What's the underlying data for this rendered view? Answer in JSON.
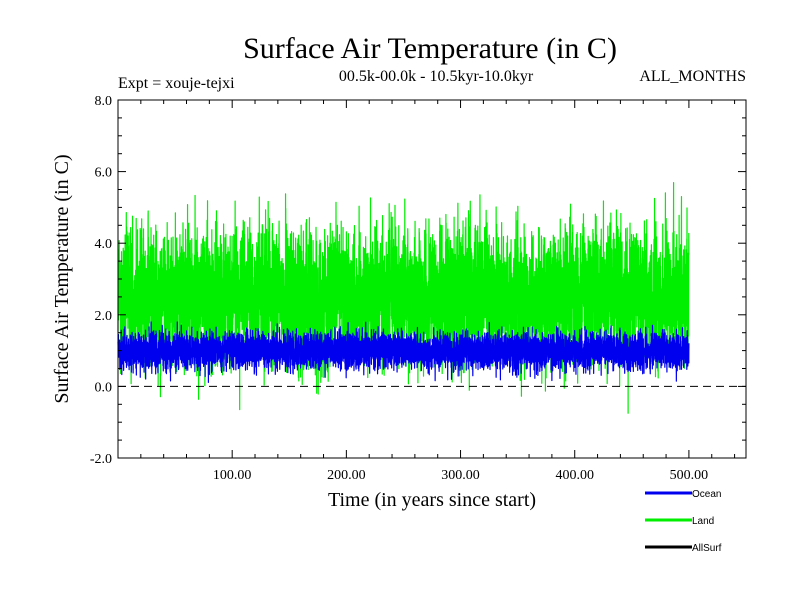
{
  "chart_data": {
    "type": "line",
    "title": "Surface Air Temperature (in C)",
    "subtitle": "00.5k-00.0k - 10.5kyr-10.0kyr",
    "expt_label": "Expt = xouje-tejxi",
    "months_label": "ALL_MONTHS",
    "xlabel": "Time (in years since start)",
    "ylabel": "Surface Air Temperature (in C)",
    "xlim": [
      0,
      550
    ],
    "ylim": [
      -2.0,
      8.0
    ],
    "x_ticks": [
      100,
      200,
      300,
      400,
      500
    ],
    "x_tick_labels": [
      "100.00",
      "200.00",
      "300.00",
      "400.00",
      "500.00"
    ],
    "y_ticks": [
      -2.0,
      0.0,
      2.0,
      4.0,
      6.0,
      8.0
    ],
    "y_tick_labels": [
      "-2.0",
      "0.0",
      "2.0",
      "4.0",
      "6.0",
      "8.0"
    ],
    "reference_line": {
      "y": 0.0,
      "style": "dashed"
    },
    "series": [
      {
        "name": "Land",
        "color": "#00ee00",
        "x_range": [
          0,
          500
        ],
        "mean": 2.55,
        "envelope": {
          "low": -0.4,
          "high": 4.7
        },
        "extremes": {
          "min": -0.9,
          "max": 6.05
        }
      },
      {
        "name": "Ocean",
        "color": "#0000ee",
        "x_range": [
          0,
          500
        ],
        "mean": 1.0,
        "envelope": {
          "low": 0.3,
          "high": 1.7
        },
        "extremes": {
          "min": 0.05,
          "max": 1.95
        }
      },
      {
        "name": "AllSurf",
        "color": "#000000",
        "x_range": [
          0,
          500
        ],
        "mean": null
      }
    ],
    "legend": {
      "position": "bottom-right",
      "entries": [
        "Ocean",
        "Land",
        "AllSurf"
      ]
    }
  }
}
